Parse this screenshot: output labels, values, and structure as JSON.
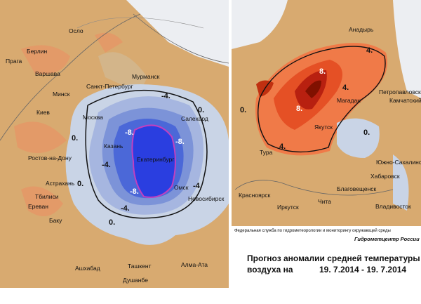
{
  "left_map": {
    "cities": [
      "Осло",
      "Берлин",
      "Прага",
      "Варшава",
      "Минск",
      "Санкт-Петербург",
      "Мурманск",
      "Киев",
      "Москва",
      "Казань",
      "Ростов-на-Дону",
      "Астрахань",
      "Тбилиси",
      "Ереван",
      "Баку",
      "Екатеринбург",
      "Салехард",
      "Омск",
      "Новосибирск",
      "Ашхабад",
      "Ташкент",
      "Алма-Ата",
      "Душанбе"
    ],
    "contour_labels": [
      "-4.",
      "0.",
      "0.",
      "-4.",
      "-8.",
      "-8.",
      "-8.",
      "-4.",
      "-4.",
      "0.",
      "0."
    ]
  },
  "right_map": {
    "cities": [
      "Анадырь",
      "Петропавловск",
      "Камчатский",
      "Магадан",
      "Якутск",
      "Тура",
      "Южно-Сахалинск",
      "Хабаровск",
      "Благовещенск",
      "Красноярск",
      "Иркутск",
      "Чита",
      "Владивосток"
    ],
    "contour_labels": [
      "4.",
      "8.",
      "8.",
      "4.",
      "4.",
      "0.",
      "0."
    ]
  },
  "footer": {
    "agency": "Федеральная служба по гидрометеорологии и мониторингу окружающей среды",
    "organization": "Гидрометцентр России",
    "title": "Прогноз аномалии средней температуры",
    "subtitle": "воздуха на",
    "dates": "19. 7.2014 - 19. 7.2014"
  }
}
